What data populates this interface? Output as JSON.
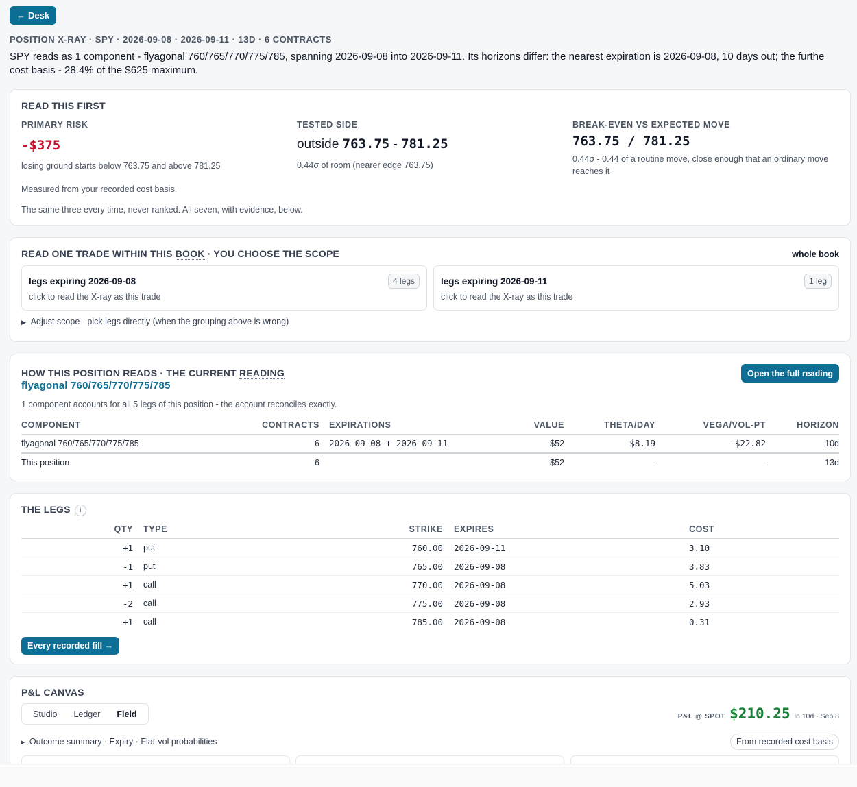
{
  "nav": {
    "back_label": "Desk"
  },
  "header": {
    "meta": "POSITION X-RAY · SPY · 2026-09-08 · 2026-09-11 · 13D · 6 CONTRACTS",
    "summary": "SPY reads as 1 component - flyagonal 760/765/770/775/785, spanning 2026-09-08 into 2026-09-11. Its horizons differ: the nearest expiration is 2026-09-08, 10 days out; the furthe",
    "summary_line2": "cost basis - 28.4% of the $625 maximum."
  },
  "read_first": {
    "title": "READ THIS FIRST",
    "primary_risk": {
      "label": "PRIMARY RISK",
      "value": "-$375",
      "note": "losing ground starts below 763.75 and above 781.25"
    },
    "tested_side": {
      "label": "TESTED SIDE",
      "prefix": "outside",
      "low": "763.75",
      "sep": "-",
      "high": "781.25",
      "note": "0.44σ of room (nearer edge 763.75)"
    },
    "breakeven": {
      "label": "BREAK-EVEN VS EXPECTED MOVE",
      "value": "763.75 / 781.25",
      "note": "0.44σ - 0.44 of a routine move, close enough that an ordinary move reaches it"
    },
    "foot1": "Measured from your recorded cost basis.",
    "foot2": "The same three every time, never ranked. All seven, with evidence, below."
  },
  "scope": {
    "title_a": "READ ONE TRADE WITHIN THIS",
    "title_b": "BOOK",
    "title_c": "· YOU CHOOSE THE SCOPE",
    "right_label": "whole book",
    "options": [
      {
        "title": "legs expiring 2026-09-08",
        "subtitle": "click to read the X-ray as this trade",
        "badge": "4 legs"
      },
      {
        "title": "legs expiring 2026-09-11",
        "subtitle": "click to read the X-ray as this trade",
        "badge": "1 leg"
      }
    ],
    "adjust": "Adjust scope - pick legs directly (when the grouping above is wrong)"
  },
  "reading": {
    "title_a": "HOW THIS POSITION READS · THE CURRENT",
    "title_b": "READING",
    "structure": "flyagonal 760/765/770/775/785",
    "open_button": "Open the full reading",
    "note": "1 component accounts for all 5 legs of this position - the account reconciles exactly.",
    "columns": [
      "COMPONENT",
      "CONTRACTS",
      "EXPIRATIONS",
      "VALUE",
      "THETA/DAY",
      "VEGA/VOL-PT",
      "HORIZON"
    ],
    "rows": [
      {
        "component": "flyagonal 760/765/770/775/785",
        "contracts": "6",
        "expirations": "2026-09-08 + 2026-09-11",
        "value": "$52",
        "theta": "$8.19",
        "vega": "-$22.82",
        "horizon": "10d"
      }
    ],
    "total": {
      "component": "This position",
      "contracts": "6",
      "expirations": "",
      "value": "$52",
      "theta": "-",
      "vega": "-",
      "horizon": "13d"
    }
  },
  "legs": {
    "title": "THE LEGS",
    "info": "i",
    "columns": [
      "QTY",
      "TYPE",
      "STRIKE",
      "EXPIRES",
      "COST"
    ],
    "rows": [
      {
        "qty": "+1",
        "type": "put",
        "strike": "760.00",
        "expires": "2026-09-11",
        "cost": "3.10"
      },
      {
        "qty": "-1",
        "type": "put",
        "strike": "765.00",
        "expires": "2026-09-08",
        "cost": "3.83"
      },
      {
        "qty": "+1",
        "type": "call",
        "strike": "770.00",
        "expires": "2026-09-08",
        "cost": "5.03"
      },
      {
        "qty": "-2",
        "type": "call",
        "strike": "775.00",
        "expires": "2026-09-08",
        "cost": "2.93"
      },
      {
        "qty": "+1",
        "type": "call",
        "strike": "785.00",
        "expires": "2026-09-08",
        "cost": "0.31"
      }
    ],
    "fill_button": "Every recorded fill →"
  },
  "pnl": {
    "title": "P&L CANVAS",
    "tabs": [
      "Studio",
      "Ledger",
      "Field"
    ],
    "active_tab": "Field",
    "spot_label": "P&L @ SPOT",
    "spot_value": "$210.25",
    "spot_when": "in 10d · Sep 8",
    "outcome": "Outcome summary · Expiry · Flat-vol probabilities",
    "cost_basis_chip": "From recorded cost basis"
  },
  "colors": {
    "accent": "#0d6e96",
    "negative": "#c8102e",
    "positive": "#1a7f37"
  },
  "icons": {
    "back": "arrow-left-icon",
    "expand": "triangle-right-icon",
    "info": "info-icon"
  }
}
